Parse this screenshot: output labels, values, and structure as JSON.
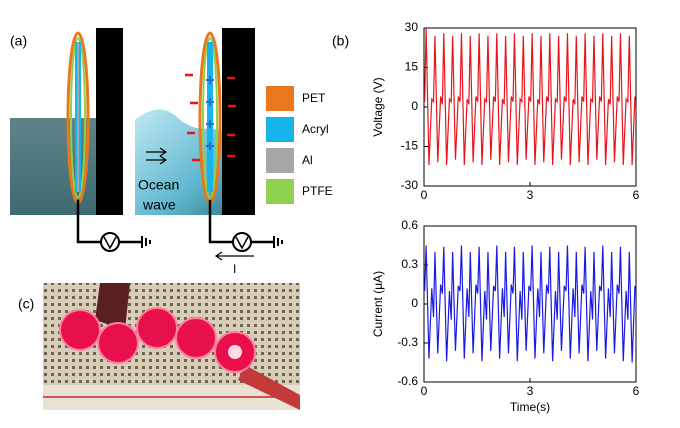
{
  "chart_data": [
    {
      "type": "line",
      "ylabel": "Voltage (V)",
      "x": [
        0.02,
        0.06,
        0.14,
        0.22,
        0.27,
        0.31,
        0.39,
        0.47,
        0.52,
        0.56,
        0.64,
        0.72,
        0.77,
        0.81,
        0.89,
        0.97,
        1.02,
        1.06,
        1.14,
        1.22,
        1.27,
        1.31,
        1.39,
        1.47,
        1.52,
        1.56,
        1.64,
        1.72,
        1.77,
        1.81,
        1.89,
        1.97,
        2.02,
        2.06,
        2.14,
        2.22,
        2.27,
        2.31,
        2.39,
        2.47,
        2.52,
        2.56,
        2.64,
        2.72,
        2.77,
        2.81,
        2.89,
        2.97,
        3.02,
        3.06,
        3.14,
        3.22,
        3.27,
        3.31,
        3.39,
        3.47,
        3.52,
        3.56,
        3.64,
        3.72,
        3.77,
        3.81,
        3.89,
        3.97,
        4.02,
        4.06,
        4.14,
        4.22,
        4.27,
        4.31,
        4.39,
        4.47,
        4.52,
        4.56,
        4.64,
        4.72,
        4.77,
        4.81,
        4.89,
        4.97,
        5.02,
        5.06,
        5.14,
        5.22,
        5.27,
        5.31,
        5.39,
        5.47,
        5.52,
        5.56,
        5.64,
        5.72,
        5.77,
        5.81,
        5.89,
        5.97
      ],
      "series": [
        {
          "name": "Voltage",
          "color": "#e8141c",
          "values": [
            2,
            30,
            -22,
            3,
            2,
            27,
            -21,
            4,
            1,
            28,
            -22,
            3,
            2,
            27,
            -20,
            4,
            2,
            28,
            -22,
            3,
            1,
            27,
            -21,
            4,
            2,
            28,
            -22,
            3,
            2,
            27,
            -20,
            4,
            2,
            28,
            -22,
            3,
            1,
            27,
            -21,
            4,
            2,
            28,
            -22,
            3,
            2,
            27,
            -20,
            4,
            2,
            28,
            -22,
            3,
            1,
            27,
            -21,
            4,
            2,
            28,
            -22,
            3,
            2,
            27,
            -20,
            4,
            2,
            28,
            -22,
            3,
            1,
            27,
            -21,
            4,
            2,
            28,
            -22,
            3,
            2,
            27,
            -20,
            4,
            2,
            28,
            -22,
            3,
            1,
            27,
            -21,
            4,
            2,
            28,
            -22,
            3,
            2,
            27,
            -22,
            4
          ]
        }
      ],
      "xlim": [
        0,
        6
      ],
      "xticks": [
        0,
        3,
        6
      ],
      "ylim": [
        -30,
        30
      ],
      "yticks": [
        -30,
        -15,
        0,
        15,
        30
      ]
    },
    {
      "type": "line",
      "ylabel": "Current (μA)",
      "xlabel": "Time(s)",
      "x": [
        0.02,
        0.06,
        0.14,
        0.22,
        0.27,
        0.31,
        0.39,
        0.47,
        0.52,
        0.56,
        0.64,
        0.72,
        0.77,
        0.81,
        0.89,
        0.97,
        1.02,
        1.06,
        1.14,
        1.22,
        1.27,
        1.31,
        1.39,
        1.47,
        1.52,
        1.56,
        1.64,
        1.72,
        1.77,
        1.81,
        1.89,
        1.97,
        2.02,
        2.06,
        2.14,
        2.22,
        2.27,
        2.31,
        2.39,
        2.47,
        2.52,
        2.56,
        2.64,
        2.72,
        2.77,
        2.81,
        2.89,
        2.97,
        3.02,
        3.06,
        3.14,
        3.22,
        3.27,
        3.31,
        3.39,
        3.47,
        3.52,
        3.56,
        3.64,
        3.72,
        3.77,
        3.81,
        3.89,
        3.97,
        4.02,
        4.06,
        4.14,
        4.22,
        4.27,
        4.31,
        4.39,
        4.47,
        4.52,
        4.56,
        4.64,
        4.72,
        4.77,
        4.81,
        4.89,
        4.97,
        5.02,
        5.06,
        5.14,
        5.22,
        5.27,
        5.31,
        5.39,
        5.47,
        5.52,
        5.56,
        5.64,
        5.72,
        5.77,
        5.81,
        5.89,
        5.97
      ],
      "series": [
        {
          "name": "Current",
          "color": "#1a1ae6",
          "values": [
            0.1,
            0.45,
            -0.42,
            0.12,
            -0.1,
            0.4,
            -0.38,
            0.15,
            0.08,
            0.44,
            -0.44,
            0.1,
            -0.12,
            0.4,
            -0.36,
            0.14,
            0.1,
            0.45,
            -0.42,
            0.12,
            -0.1,
            0.4,
            -0.38,
            0.15,
            0.08,
            0.44,
            -0.44,
            0.1,
            -0.12,
            0.4,
            -0.36,
            0.14,
            0.1,
            0.45,
            -0.42,
            0.12,
            -0.1,
            0.4,
            -0.38,
            0.15,
            0.08,
            0.44,
            -0.44,
            0.1,
            -0.12,
            0.4,
            -0.36,
            0.14,
            0.1,
            0.45,
            -0.42,
            0.12,
            -0.1,
            0.4,
            -0.38,
            0.15,
            0.08,
            0.44,
            -0.44,
            0.1,
            -0.12,
            0.4,
            -0.36,
            0.14,
            0.1,
            0.45,
            -0.42,
            0.12,
            -0.1,
            0.4,
            -0.38,
            0.15,
            0.08,
            0.44,
            -0.44,
            0.1,
            -0.12,
            0.4,
            -0.36,
            0.14,
            0.1,
            0.45,
            -0.42,
            0.12,
            -0.1,
            0.4,
            -0.38,
            0.15,
            0.08,
            0.44,
            -0.44,
            0.1,
            -0.12,
            0.4,
            -0.45,
            0.14
          ]
        }
      ],
      "xlim": [
        0,
        6
      ],
      "xticks": [
        0,
        3,
        6
      ],
      "ylim": [
        -0.6,
        0.6
      ],
      "yticks": [
        -0.6,
        -0.3,
        0,
        0.3,
        0.6
      ]
    }
  ],
  "figure": {
    "panel_labels": [
      "(a)",
      "(b)",
      "(c)"
    ],
    "legend": [
      {
        "name": "PET",
        "color": "#e8771e"
      },
      {
        "name": "Acryl",
        "color": "#16b4ea"
      },
      {
        "name": "Al",
        "color": "#a6a6a6"
      },
      {
        "name": "PTFE",
        "color": "#92d050"
      }
    ],
    "wave_text": [
      "Ocean",
      "wave"
    ],
    "current_label": "I"
  }
}
